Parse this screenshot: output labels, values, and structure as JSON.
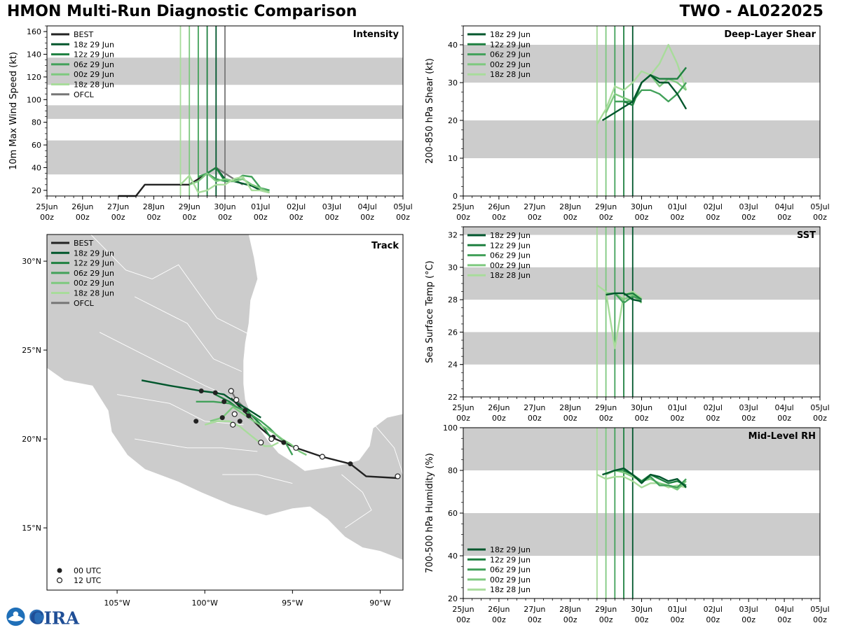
{
  "header": {
    "title": "HMON Multi-Run Diagnostic Comparison",
    "storm": "TWO - AL022025"
  },
  "logo": {
    "text": "CIRA"
  },
  "time_axis_labels": [
    "25Jun",
    "26Jun",
    "27Jun",
    "28Jun",
    "29Jun",
    "30Jun",
    "01Jul",
    "02Jul",
    "03Jul",
    "04Jul",
    "05Jul"
  ],
  "time_axis_sub": "00z",
  "colors": {
    "best": "#222222",
    "ofcl": "#777777",
    "18z 29 Jun": "#00562c",
    "12z 29 Jun": "#1e8040",
    "06z 29 Jun": "#42a15a",
    "00z 29 Jun": "#7ec97f",
    "18z 28 Jun": "#a8dc9b",
    "band": "#cccccc"
  },
  "chart_data": [
    {
      "id": "intensity",
      "type": "line",
      "title": "Intensity",
      "ylabel": "10m Max Wind Speed (kt)",
      "x_unit": "days since 25Jun 00z",
      "xlim": [
        0,
        10
      ],
      "ylim": [
        15,
        165
      ],
      "yticks": [
        20,
        40,
        60,
        80,
        100,
        120,
        140,
        160
      ],
      "bands": [
        [
          34,
          64
        ],
        [
          83,
          95
        ],
        [
          113,
          137
        ]
      ],
      "init_lines": [
        {
          "name": "18z 28 Jun",
          "x": 3.75
        },
        {
          "name": "00z 29 Jun",
          "x": 4.0
        },
        {
          "name": "06z 29 Jun",
          "x": 4.25
        },
        {
          "name": "12z 29 Jun",
          "x": 4.5
        },
        {
          "name": "18z 29 Jun",
          "x": 4.75
        },
        {
          "name": "OFCL",
          "x": 5.0
        }
      ],
      "legend": [
        "BEST",
        "18z 29 Jun",
        "12z 29 Jun",
        "06z 29 Jun",
        "00z 29 Jun",
        "18z 28 Jun",
        "OFCL"
      ],
      "series": [
        {
          "name": "BEST",
          "x": [
            2.0,
            2.25,
            2.5,
            2.75,
            3.0,
            3.25,
            3.5,
            3.75,
            4.0,
            4.25,
            4.5,
            4.75
          ],
          "y": [
            15,
            15,
            15,
            25,
            25,
            25,
            25,
            25,
            25,
            30,
            35,
            40
          ]
        },
        {
          "name": "OFCL",
          "x": [
            4.75,
            5.0,
            5.25,
            5.5
          ],
          "y": [
            40,
            35,
            30,
            25
          ]
        },
        {
          "name": "18z 29 Jun",
          "x": [
            4.75,
            5.0,
            5.25,
            5.5,
            5.75,
            6.0,
            6.25
          ],
          "y": [
            40,
            30,
            28,
            26,
            24,
            20,
            18
          ]
        },
        {
          "name": "12z 29 Jun",
          "x": [
            4.5,
            4.75,
            5.0,
            5.25,
            5.5,
            5.75,
            6.0,
            6.25
          ],
          "y": [
            35,
            40,
            28,
            28,
            30,
            25,
            22,
            20
          ]
        },
        {
          "name": "06z 29 Jun",
          "x": [
            4.25,
            4.5,
            4.75,
            5.0,
            5.25,
            5.5,
            5.75,
            6.0,
            6.25
          ],
          "y": [
            32,
            35,
            30,
            28,
            28,
            33,
            32,
            22,
            20
          ]
        },
        {
          "name": "00z 29 Jun",
          "x": [
            4.0,
            4.25,
            4.5,
            4.75,
            5.0,
            5.25,
            5.5,
            5.75,
            6.0,
            6.25
          ],
          "y": [
            25,
            28,
            35,
            28,
            30,
            28,
            30,
            25,
            22,
            18
          ]
        },
        {
          "name": "18z 28 Jun",
          "x": [
            3.75,
            4.0,
            4.25,
            4.5,
            4.75,
            5.0,
            5.25,
            5.5,
            5.75,
            6.0,
            6.25
          ],
          "y": [
            25,
            33,
            18,
            20,
            25,
            25,
            30,
            32,
            20,
            20,
            18
          ]
        }
      ]
    },
    {
      "id": "shear",
      "type": "line",
      "title": "Deep-Layer Shear",
      "ylabel": "200-850 hPa Shear (kt)",
      "x_unit": "days since 25Jun 00z",
      "xlim": [
        0,
        10
      ],
      "ylim": [
        0,
        45
      ],
      "yticks": [
        0,
        10,
        20,
        30,
        40
      ],
      "bands": [
        [
          10,
          20
        ],
        [
          30,
          40
        ]
      ],
      "init_lines": [
        {
          "name": "18z 28 Jun",
          "x": 3.75
        },
        {
          "name": "00z 29 Jun",
          "x": 4.0
        },
        {
          "name": "06z 29 Jun",
          "x": 4.25
        },
        {
          "name": "12z 29 Jun",
          "x": 4.5
        },
        {
          "name": "18z 29 Jun",
          "x": 4.75
        }
      ],
      "legend": [
        "18z 29 Jun",
        "12z 29 Jun",
        "06z 29 Jun",
        "00z 29 Jun",
        "18z 28 Jun"
      ],
      "series": [
        {
          "name": "18z 28 Jun",
          "x": [
            3.75,
            4.0,
            4.25,
            4.5,
            4.75,
            5.0,
            5.25,
            5.5,
            5.75,
            6.0,
            6.25
          ],
          "y": [
            19,
            23,
            29,
            28,
            30,
            33,
            32,
            35,
            40,
            35,
            28
          ]
        },
        {
          "name": "00z 29 Jun",
          "x": [
            4.0,
            4.25,
            4.5,
            4.75,
            5.0,
            5.25,
            5.5,
            5.75,
            6.0,
            6.25
          ],
          "y": [
            22,
            27,
            26,
            25,
            30,
            32,
            29,
            31,
            30,
            28
          ]
        },
        {
          "name": "06z 29 Jun",
          "x": [
            4.25,
            4.5,
            4.75,
            5.0,
            5.25,
            5.5,
            5.75,
            6.0,
            6.25
          ],
          "y": [
            25,
            25,
            25,
            28,
            28,
            27,
            25,
            27,
            30
          ]
        },
        {
          "name": "12z 29 Jun",
          "x": [
            4.5,
            4.75,
            5.0,
            5.25,
            5.5,
            5.75,
            6.0,
            6.25
          ],
          "y": [
            25,
            24,
            30,
            32,
            31,
            31,
            31,
            34
          ]
        },
        {
          "name": "18z 29 Jun",
          "x": [
            3.9,
            4.75,
            5.0,
            5.25,
            5.5,
            5.75,
            6.0,
            6.25
          ],
          "y": [
            20,
            25,
            30,
            32,
            30,
            30,
            27,
            23
          ]
        }
      ]
    },
    {
      "id": "sst",
      "type": "line",
      "title": "SST",
      "ylabel": "Sea Surface Temp (°C)",
      "x_unit": "days since 25Jun 00z",
      "xlim": [
        0,
        10
      ],
      "ylim": [
        22,
        32.5
      ],
      "yticks": [
        22,
        24,
        26,
        28,
        30,
        32
      ],
      "bands": [
        [
          24,
          26
        ],
        [
          28,
          30
        ],
        [
          32,
          32.5
        ]
      ],
      "init_lines": [
        {
          "name": "18z 28 Jun",
          "x": 3.75
        },
        {
          "name": "00z 29 Jun",
          "x": 4.0
        },
        {
          "name": "06z 29 Jun",
          "x": 4.25
        },
        {
          "name": "12z 29 Jun",
          "x": 4.5
        },
        {
          "name": "18z 29 Jun",
          "x": 4.75
        }
      ],
      "legend": [
        "18z 29 Jun",
        "12z 29 Jun",
        "06z 29 Jun",
        "00z 29 Jun",
        "18z 28 Jun"
      ],
      "series": [
        {
          "name": "18z 28 Jun",
          "x": [
            3.75,
            4.0,
            4.25,
            4.5,
            4.75,
            5.0
          ],
          "y": [
            28.9,
            28.5,
            25.0,
            28.3,
            28.5,
            28.1
          ]
        },
        {
          "name": "00z 29 Jun",
          "x": [
            4.0,
            4.25,
            4.5,
            4.75,
            5.0
          ],
          "y": [
            28.4,
            28.4,
            28.0,
            28.3,
            27.8
          ]
        },
        {
          "name": "06z 29 Jun",
          "x": [
            4.25,
            4.5,
            4.75,
            5.0
          ],
          "y": [
            28.4,
            27.8,
            28.2,
            28.0
          ]
        },
        {
          "name": "12z 29 Jun",
          "x": [
            4.5,
            4.75,
            5.0
          ],
          "y": [
            28.3,
            28.4,
            28.0
          ]
        },
        {
          "name": "18z 29 Jun",
          "x": [
            4.0,
            4.25,
            4.5,
            4.75,
            5.0
          ],
          "y": [
            28.3,
            28.4,
            28.4,
            28.0,
            27.9
          ]
        }
      ]
    },
    {
      "id": "rh",
      "type": "line",
      "title": "Mid-Level RH",
      "ylabel": "700-500 hPa Humidity (%)",
      "x_unit": "days since 25Jun 00z",
      "xlim": [
        0,
        10
      ],
      "ylim": [
        20,
        100
      ],
      "yticks": [
        20,
        40,
        60,
        80,
        100
      ],
      "bands": [
        [
          40,
          60
        ],
        [
          80,
          100
        ]
      ],
      "init_lines": [
        {
          "name": "18z 28 Jun",
          "x": 3.75
        },
        {
          "name": "00z 29 Jun",
          "x": 4.0
        },
        {
          "name": "06z 29 Jun",
          "x": 4.25
        },
        {
          "name": "12z 29 Jun",
          "x": 4.5
        },
        {
          "name": "18z 29 Jun",
          "x": 4.75
        }
      ],
      "legend": [
        "18z 29 Jun",
        "12z 29 Jun",
        "06z 29 Jun",
        "00z 29 Jun",
        "18z 28 Jun"
      ],
      "legend_position": "bottom-left",
      "series": [
        {
          "name": "18z 28 Jun",
          "x": [
            3.75,
            4.0,
            4.25,
            4.5,
            4.75,
            5.0,
            5.25,
            5.5,
            5.75,
            6.0,
            6.25
          ],
          "y": [
            78,
            76,
            77,
            77,
            75,
            72,
            74,
            74,
            72,
            73,
            72
          ]
        },
        {
          "name": "00z 29 Jun",
          "x": [
            4.0,
            4.25,
            4.5,
            4.75,
            5.0,
            5.25,
            5.5,
            5.75,
            6.0,
            6.25
          ],
          "y": [
            78,
            80,
            79,
            77,
            75,
            76,
            74,
            73,
            71,
            75
          ]
        },
        {
          "name": "06z 29 Jun",
          "x": [
            4.25,
            4.5,
            4.75,
            5.0,
            5.25,
            5.5,
            5.75,
            6.0,
            6.25
          ],
          "y": [
            80,
            80,
            78,
            75,
            77,
            73,
            73,
            72,
            76
          ]
        },
        {
          "name": "12z 29 Jun",
          "x": [
            4.5,
            4.75,
            5.0,
            5.25,
            5.5,
            5.75,
            6.0,
            6.25
          ],
          "y": [
            80,
            78,
            75,
            78,
            76,
            74,
            75,
            73
          ]
        },
        {
          "name": "18z 29 Jun",
          "x": [
            3.9,
            4.25,
            4.5,
            4.75,
            5.0,
            5.25,
            5.5,
            5.75,
            6.0,
            6.25
          ],
          "y": [
            78,
            80,
            81,
            78,
            74,
            78,
            77,
            75,
            76,
            72
          ]
        }
      ]
    },
    {
      "id": "track",
      "type": "map",
      "title": "Track",
      "lon_range": [
        -109,
        -88.7
      ],
      "lat_range": [
        11.5,
        31.5
      ],
      "xticks": [
        -105,
        -100,
        -95,
        -90
      ],
      "xtick_labels": [
        "105°W",
        "100°W",
        "95°W",
        "90°W"
      ],
      "yticks": [
        15,
        20,
        25,
        30
      ],
      "ytick_labels": [
        "15°N",
        "20°N",
        "25°N",
        "30°N"
      ],
      "legend": [
        "BEST",
        "18z 29 Jun",
        "12z 29 Jun",
        "06z 29 Jun",
        "00z 29 Jun",
        "18z 28 Jun",
        "OFCL"
      ],
      "marker_legend": [
        "00 UTC",
        "12 UTC"
      ],
      "series": [
        {
          "name": "BEST",
          "lon": [
            -89.0,
            -90.8,
            -91.7,
            -93.3,
            -94.8,
            -95.5,
            -96.2,
            -96.8,
            -97.5,
            -98.0,
            -98.5
          ],
          "lat": [
            17.8,
            17.9,
            18.6,
            19.0,
            19.5,
            19.8,
            20.1,
            20.6,
            21.3,
            21.8,
            22.3
          ]
        },
        {
          "name": "OFCL",
          "lon": [
            -98.5,
            -98.2,
            -97.7,
            -97.0
          ],
          "lat": [
            22.7,
            22.2,
            21.7,
            21.0
          ]
        },
        {
          "name": "18z 29 Jun",
          "lon": [
            -103.6,
            -102.0,
            -100.2,
            -99.4,
            -98.9,
            -98.3,
            -97.6,
            -96.8
          ],
          "lat": [
            23.3,
            23.0,
            22.7,
            22.6,
            22.5,
            22.1,
            21.7,
            21.2
          ]
        },
        {
          "name": "12z 29 Jun",
          "lon": [
            -96.2,
            -96.6,
            -97.2,
            -97.6,
            -98.2,
            -98.6,
            -99.4
          ],
          "lat": [
            20.0,
            20.6,
            21.2,
            21.6,
            21.8,
            22.1,
            22.5
          ]
        },
        {
          "name": "06z 29 Jun",
          "lon": [
            -100.5,
            -99.5,
            -98.6,
            -98.0,
            -97.4,
            -96.8,
            -96.3,
            -95.9,
            -95.4,
            -95.0
          ],
          "lat": [
            22.1,
            22.1,
            22.0,
            21.7,
            21.4,
            21.0,
            20.6,
            20.2,
            19.8,
            19.1
          ]
        },
        {
          "name": "00z 29 Jun",
          "lon": [
            -99.7,
            -99.0,
            -98.4,
            -97.8,
            -97.2,
            -96.5,
            -96.0,
            -95.6,
            -95.1,
            -94.6,
            -94.2
          ],
          "lat": [
            21.0,
            21.2,
            21.8,
            21.4,
            21.0,
            20.6,
            20.3,
            20.0,
            19.7,
            19.3,
            19.1
          ]
        },
        {
          "name": "18z 28 Jun",
          "lon": [
            -100.0,
            -99.3,
            -98.6,
            -98.0,
            -97.5,
            -97.0,
            -96.6,
            -96.2,
            -95.8
          ],
          "lat": [
            20.8,
            21.0,
            21.0,
            20.7,
            20.3,
            19.9,
            19.6,
            19.6,
            19.8
          ]
        }
      ],
      "best_00z_points": [
        [
          -91.7,
          18.6
        ],
        [
          -95.5,
          19.8
        ],
        [
          -97.5,
          21.3
        ],
        [
          -98.0,
          21.0
        ],
        [
          -99.0,
          21.2
        ],
        [
          -98.9,
          22.1
        ],
        [
          -100.2,
          22.7
        ],
        [
          -99.4,
          22.6
        ],
        [
          -100.5,
          21.0
        ],
        [
          -97.7,
          21.6
        ],
        [
          -96.1,
          20.1
        ]
      ],
      "best_12z_points": [
        [
          -89.0,
          17.9
        ],
        [
          -93.3,
          19.0
        ],
        [
          -94.8,
          19.5
        ],
        [
          -96.2,
          20.0
        ],
        [
          -96.8,
          19.8
        ],
        [
          -98.5,
          22.7
        ],
        [
          -98.2,
          22.2
        ],
        [
          -98.4,
          20.8
        ],
        [
          -98.3,
          21.4
        ]
      ]
    }
  ]
}
